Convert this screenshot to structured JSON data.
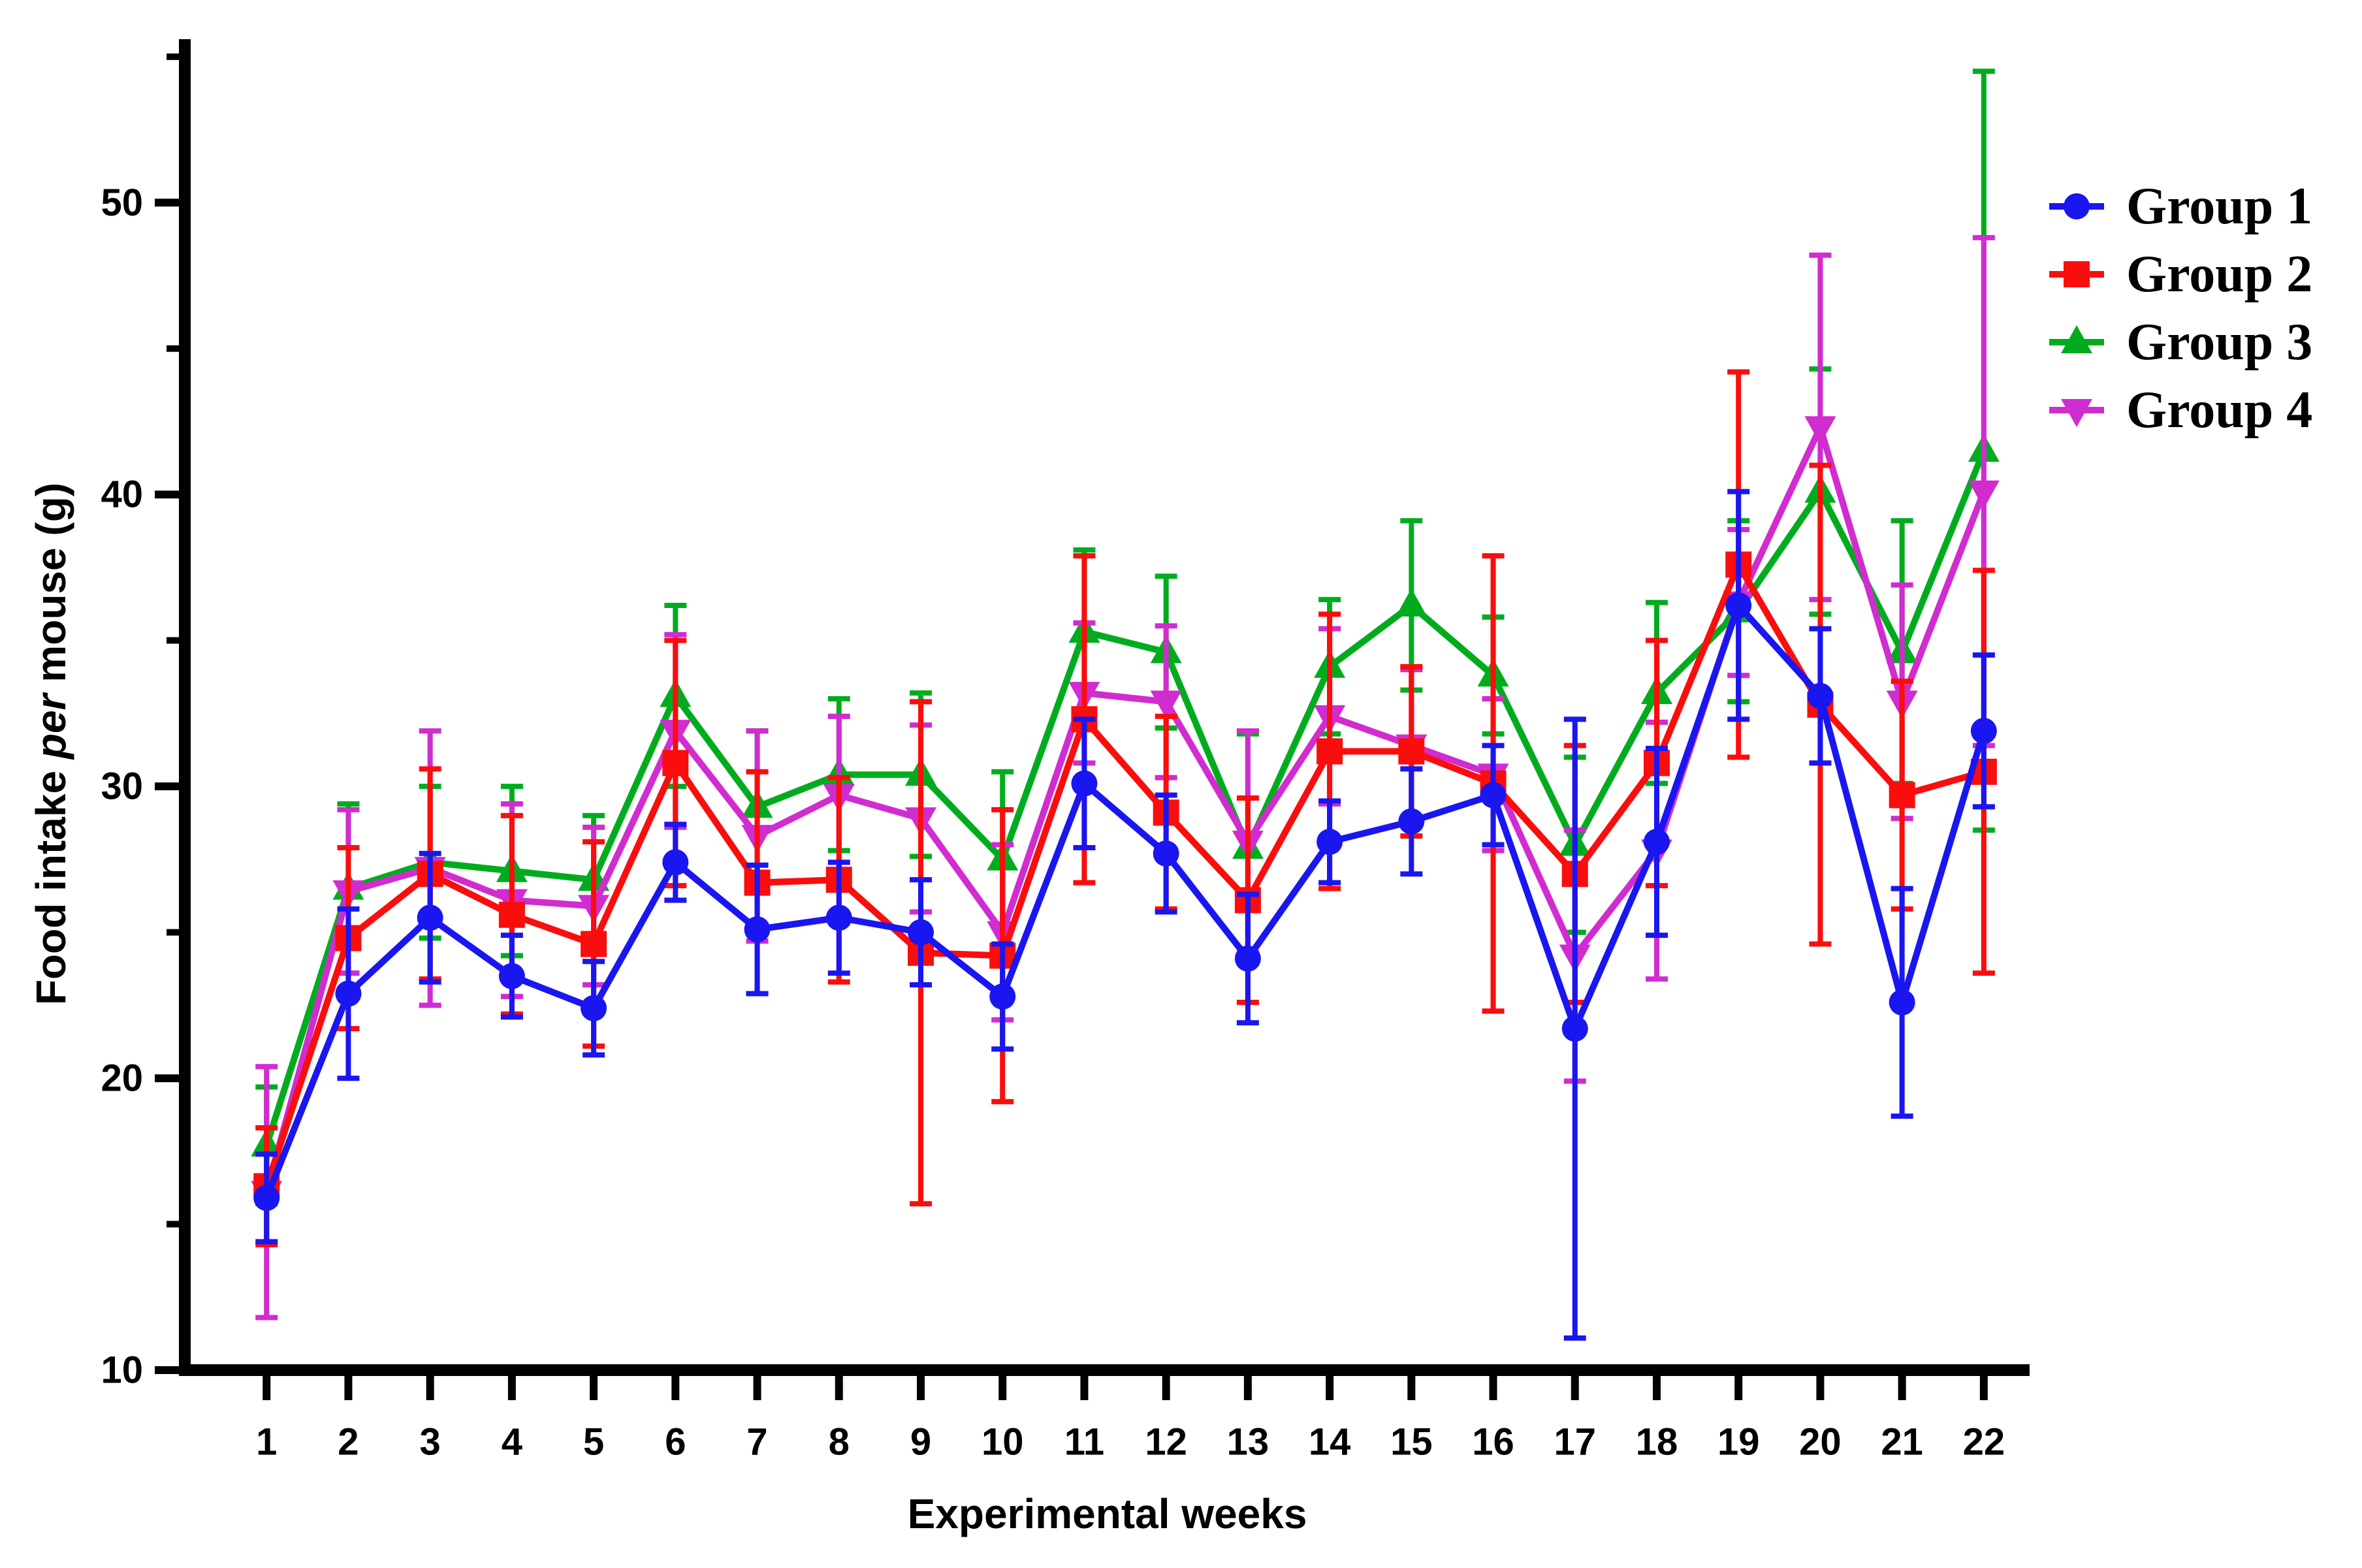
{
  "figure": {
    "description": "Line chart with error bars of weekly food intake per mouse for four groups"
  },
  "chart_data": {
    "type": "line",
    "title": "",
    "xlabel": "Experimental weeks",
    "ylabel": "Food intake per mouse (g)",
    "ylabel_parts": {
      "pre": "Food intake ",
      "italic": "per",
      "post": " mouse (g)"
    },
    "x": [
      1,
      2,
      3,
      4,
      5,
      6,
      7,
      8,
      9,
      10,
      11,
      12,
      13,
      14,
      15,
      16,
      17,
      18,
      19,
      20,
      21,
      22
    ],
    "x_tick_labels": [
      "1",
      "2",
      "3",
      "4",
      "5",
      "6",
      "7",
      "8",
      "9",
      "10",
      "11",
      "12",
      "13",
      "14",
      "15",
      "16",
      "17",
      "18",
      "19",
      "20",
      "21",
      "22"
    ],
    "y_major_ticks": [
      10,
      20,
      30,
      40,
      50
    ],
    "y_minor_ticks": [
      15,
      25,
      35,
      45,
      55
    ],
    "ylim": [
      10,
      55.6
    ],
    "xlim": [
      0,
      22.56
    ],
    "grid": false,
    "legend": {
      "position": "upper-right"
    },
    "axis_color": "#000000",
    "background": "#ffffff",
    "series": [
      {
        "name": "Group 1",
        "color": "#1a16f0",
        "marker": "circle",
        "values": [
          15.9,
          22.9,
          25.5,
          23.5,
          22.4,
          27.4,
          25.1,
          25.5,
          25.0,
          22.8,
          30.1,
          27.7,
          24.1,
          28.1,
          28.8,
          29.7,
          21.7,
          28.1,
          36.2,
          33.1,
          22.6,
          31.9
        ],
        "errors": [
          1.5,
          2.9,
          2.2,
          1.4,
          1.6,
          1.3,
          2.2,
          1.9,
          1.8,
          1.8,
          2.2,
          2.0,
          2.2,
          1.4,
          1.8,
          1.7,
          10.6,
          3.2,
          3.9,
          2.3,
          3.9,
          2.6
        ]
      },
      {
        "name": "Group 2",
        "color": "#fa0d0d",
        "marker": "square",
        "values": [
          16.3,
          24.8,
          27.0,
          25.6,
          24.6,
          30.8,
          26.7,
          26.8,
          24.3,
          24.2,
          32.3,
          29.1,
          26.1,
          31.2,
          31.2,
          30.1,
          27.0,
          30.8,
          37.6,
          32.8,
          29.7,
          30.5
        ],
        "errors": [
          2.0,
          3.1,
          3.6,
          3.4,
          3.5,
          4.2,
          3.8,
          3.5,
          8.6,
          5.0,
          5.6,
          3.3,
          3.5,
          4.7,
          2.9,
          7.8,
          4.4,
          4.2,
          6.6,
          8.2,
          3.9,
          6.9
        ]
      },
      {
        "name": "Group 3",
        "color": "#00ac1e",
        "marker": "triangle-up",
        "values": [
          17.7,
          26.5,
          27.4,
          27.1,
          26.8,
          33.1,
          29.3,
          30.4,
          30.4,
          27.5,
          35.3,
          34.6,
          27.9,
          34.1,
          36.2,
          33.8,
          28.0,
          33.2,
          36.0,
          40.1,
          34.6,
          41.5
        ],
        "errors": [
          2.0,
          2.9,
          2.6,
          2.9,
          2.2,
          3.1,
          2.6,
          2.6,
          2.8,
          3.0,
          2.8,
          2.6,
          3.9,
          2.3,
          2.9,
          2.0,
          3.0,
          3.1,
          3.1,
          4.2,
          4.5,
          13.0
        ]
      },
      {
        "name": "Group 4",
        "color": "#d02cd0",
        "marker": "triangle-down",
        "values": [
          16.1,
          26.4,
          27.2,
          26.1,
          25.9,
          31.9,
          28.3,
          29.7,
          28.9,
          25.0,
          33.2,
          32.9,
          28.1,
          32.4,
          31.4,
          30.4,
          24.2,
          27.8,
          36.3,
          42.3,
          32.9,
          40.1
        ],
        "errors": [
          4.3,
          2.8,
          4.7,
          3.3,
          2.7,
          3.3,
          3.6,
          2.7,
          3.2,
          3.0,
          2.4,
          2.6,
          3.8,
          3.0,
          2.6,
          2.6,
          4.3,
          4.4,
          2.5,
          5.9,
          4.0,
          8.7
        ]
      }
    ],
    "draw_order": [
      2,
      3,
      1,
      0
    ]
  }
}
